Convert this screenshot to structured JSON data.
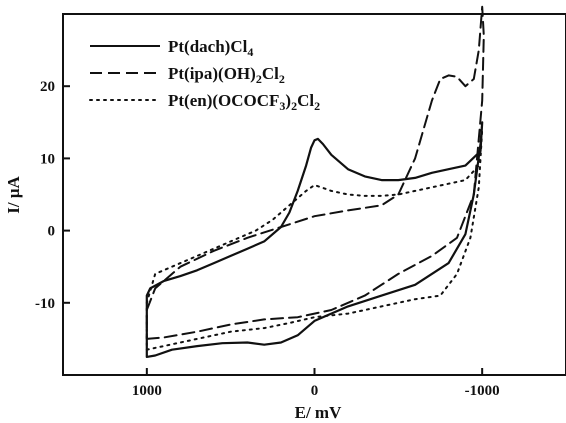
{
  "chart_data": {
    "type": "line",
    "xlabel": "E/ mV",
    "ylabel": "I/ μA",
    "xlim": [
      1500,
      -1500
    ],
    "ylim": [
      -20,
      30
    ],
    "x_ticks": [
      1000,
      0,
      -1000
    ],
    "x_tick_labels": [
      "1000",
      "0",
      "-1000"
    ],
    "y_ticks": [
      20,
      10,
      0,
      -10
    ],
    "y_tick_labels": [
      "20",
      "10",
      "0",
      "-10"
    ],
    "grid": false,
    "legend_position": "top-left",
    "legend": [
      {
        "name": "Pt(dach)Cl",
        "sub": "4",
        "rest": ""
      },
      {
        "name": "Pt(ipa)(OH)",
        "sub": "2",
        "rest": "Cl",
        "sub2": "2"
      },
      {
        "name": "Pt(en)(OCOCF",
        "sub": "3",
        "rest": ")",
        "sub2": "2",
        "rest2": "Cl",
        "sub3": "2"
      }
    ],
    "series": [
      {
        "name": "Pt(dach)Cl4",
        "style": "solid",
        "points": [
          [
            1000,
            -17.5
          ],
          [
            950,
            -17.3
          ],
          [
            850,
            -16.5
          ],
          [
            700,
            -16
          ],
          [
            550,
            -15.6
          ],
          [
            400,
            -15.5
          ],
          [
            300,
            -15.8
          ],
          [
            200,
            -15.5
          ],
          [
            100,
            -14.5
          ],
          [
            0,
            -12.5
          ],
          [
            -200,
            -10.5
          ],
          [
            -400,
            -9
          ],
          [
            -600,
            -7.5
          ],
          [
            -800,
            -4.5
          ],
          [
            -900,
            -0.5
          ],
          [
            -950,
            5
          ],
          [
            -990,
            12
          ],
          [
            -1000,
            15
          ],
          [
            -990,
            11
          ],
          [
            -900,
            9
          ],
          [
            -800,
            8.5
          ],
          [
            -700,
            8
          ],
          [
            -600,
            7.3
          ],
          [
            -500,
            7
          ],
          [
            -400,
            7
          ],
          [
            -300,
            7.5
          ],
          [
            -200,
            8.5
          ],
          [
            -100,
            10.5
          ],
          [
            -50,
            12
          ],
          [
            -20,
            12.7
          ],
          [
            0,
            12.5
          ],
          [
            20,
            11.5
          ],
          [
            50,
            9
          ],
          [
            100,
            5.5
          ],
          [
            150,
            2.5
          ],
          [
            200,
            0.5
          ],
          [
            300,
            -1.5
          ],
          [
            400,
            -2.5
          ],
          [
            500,
            -3.5
          ],
          [
            600,
            -4.5
          ],
          [
            700,
            -5.5
          ],
          [
            800,
            -6.3
          ],
          [
            900,
            -7
          ],
          [
            980,
            -8
          ],
          [
            1000,
            -9
          ],
          [
            1000,
            -17.5
          ]
        ]
      },
      {
        "name": "Pt(ipa)(OH)2Cl2",
        "style": "dashed",
        "points": [
          [
            1000,
            -15
          ],
          [
            900,
            -14.8
          ],
          [
            700,
            -14
          ],
          [
            500,
            -13
          ],
          [
            300,
            -12.3
          ],
          [
            100,
            -12
          ],
          [
            -100,
            -11
          ],
          [
            -300,
            -9
          ],
          [
            -500,
            -6
          ],
          [
            -700,
            -3.5
          ],
          [
            -850,
            -1
          ],
          [
            -950,
            5
          ],
          [
            -1000,
            18
          ],
          [
            -1010,
            27
          ],
          [
            -1000,
            31
          ],
          [
            -980,
            25
          ],
          [
            -950,
            21
          ],
          [
            -900,
            20
          ],
          [
            -850,
            21.3
          ],
          [
            -800,
            21.5
          ],
          [
            -750,
            21
          ],
          [
            -700,
            18
          ],
          [
            -600,
            10
          ],
          [
            -500,
            5
          ],
          [
            -400,
            3.5
          ],
          [
            -200,
            2.8
          ],
          [
            0,
            2
          ],
          [
            200,
            0.5
          ],
          [
            400,
            -1
          ],
          [
            600,
            -2.8
          ],
          [
            800,
            -5
          ],
          [
            950,
            -8
          ],
          [
            1000,
            -11
          ],
          [
            1000,
            -15
          ]
        ]
      },
      {
        "name": "Pt(en)(OCOCF3)2Cl2",
        "style": "dotted",
        "points": [
          [
            1000,
            -16.5
          ],
          [
            900,
            -16
          ],
          [
            700,
            -15
          ],
          [
            500,
            -14
          ],
          [
            300,
            -13.5
          ],
          [
            150,
            -12.8
          ],
          [
            0,
            -12
          ],
          [
            -200,
            -11.5
          ],
          [
            -400,
            -10.5
          ],
          [
            -600,
            -9.5
          ],
          [
            -750,
            -9
          ],
          [
            -850,
            -6
          ],
          [
            -930,
            -1
          ],
          [
            -980,
            6
          ],
          [
            -1000,
            14
          ],
          [
            -980,
            9
          ],
          [
            -900,
            7
          ],
          [
            -800,
            6.5
          ],
          [
            -700,
            6
          ],
          [
            -600,
            5.5
          ],
          [
            -500,
            5
          ],
          [
            -400,
            4.8
          ],
          [
            -300,
            4.8
          ],
          [
            -200,
            5
          ],
          [
            -100,
            5.5
          ],
          [
            -40,
            6
          ],
          [
            0,
            6.3
          ],
          [
            50,
            5.5
          ],
          [
            150,
            3.5
          ],
          [
            250,
            1.5
          ],
          [
            350,
            0
          ],
          [
            500,
            -1.5
          ],
          [
            650,
            -3
          ],
          [
            800,
            -4.5
          ],
          [
            950,
            -6
          ],
          [
            1000,
            -10
          ],
          [
            1000,
            -16.5
          ]
        ]
      }
    ]
  }
}
